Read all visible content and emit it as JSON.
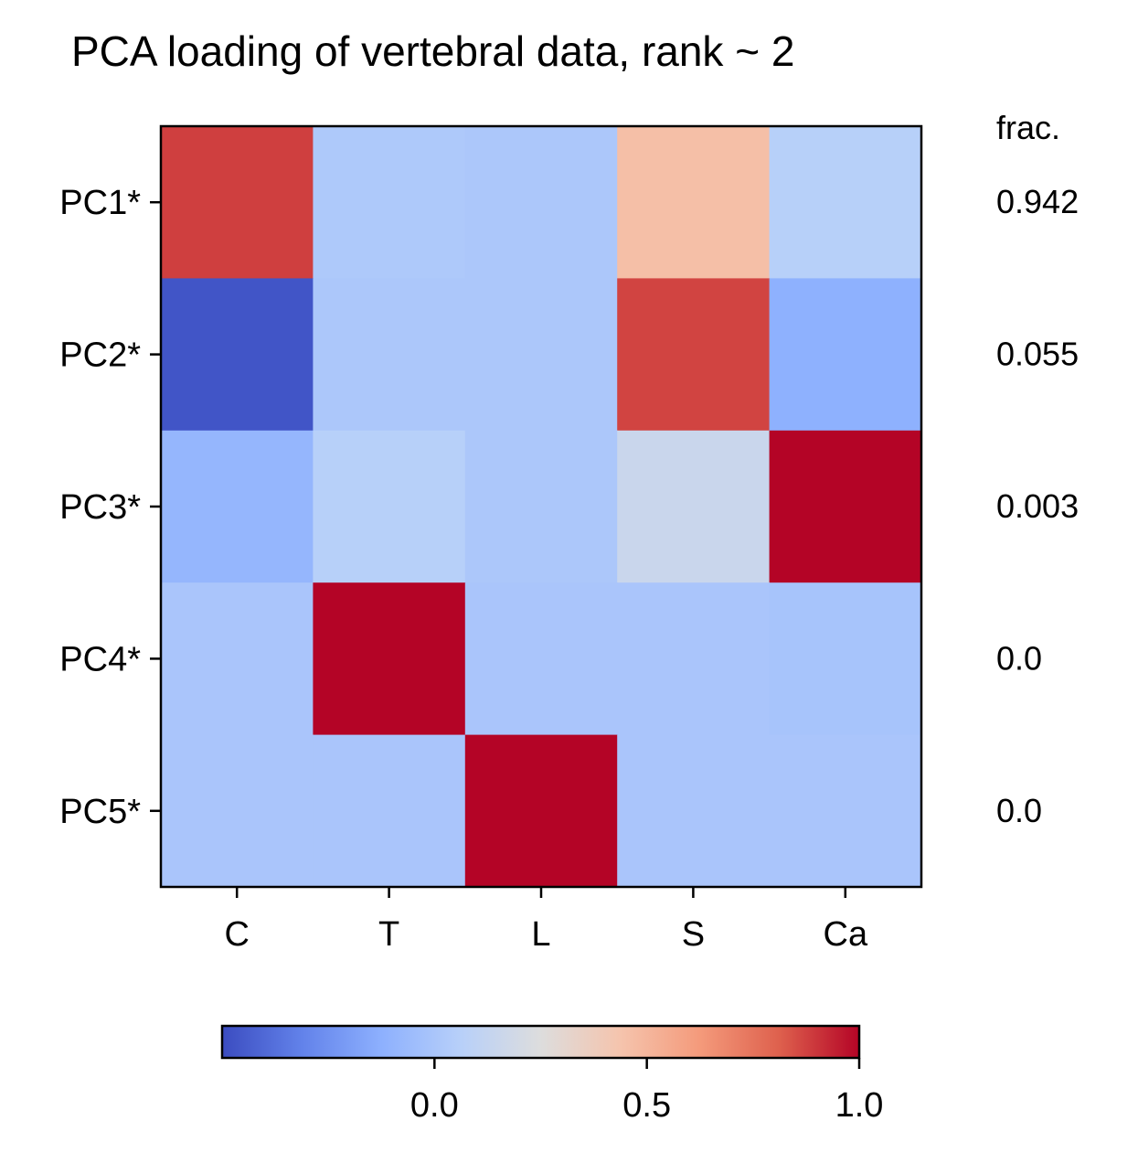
{
  "chart_data": {
    "type": "heatmap",
    "title": "PCA loading of vertebral data, rank ~ 2",
    "rows": [
      "PC1*",
      "PC2*",
      "PC3*",
      "PC4*",
      "PC5*"
    ],
    "columns": [
      "C",
      "T",
      "L",
      "S",
      "Ca"
    ],
    "values": [
      [
        0.88,
        0.02,
        0.01,
        0.46,
        0.06
      ],
      [
        -0.47,
        0.01,
        0.01,
        0.87,
        -0.12
      ],
      [
        -0.09,
        0.06,
        0.01,
        0.15,
        1.0
      ],
      [
        0.0,
        1.0,
        0.0,
        0.0,
        -0.01
      ],
      [
        0.0,
        0.0,
        1.0,
        0.0,
        0.0
      ]
    ],
    "frac_header": "frac.",
    "frac_values": [
      "0.942",
      "0.055",
      "0.003",
      "0.0",
      "0.0"
    ],
    "colormap": "coolwarm",
    "color_range": [
      -0.5,
      1.0
    ],
    "colorbar": {
      "orientation": "horizontal",
      "ticks": [
        0.0,
        0.5,
        1.0
      ],
      "tick_labels": [
        "0.0",
        "0.5",
        "1.0"
      ]
    },
    "grid": false
  }
}
